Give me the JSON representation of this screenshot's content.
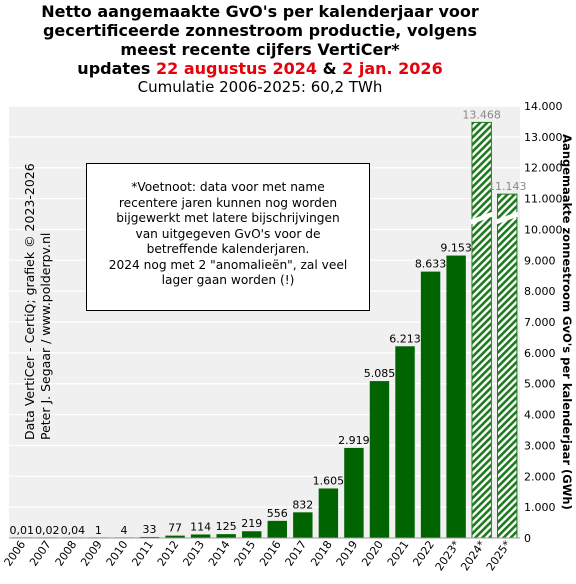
{
  "header": {
    "title_line1": "Netto aangemaakte GvO's per kalenderjaar voor",
    "title_line2": "gecertificeerde zonnestroom productie, volgens",
    "title_line3": "meest recente cijfers VertiCer*",
    "updates_prefix": "updates ",
    "update_date1": "22 augustus 2024",
    "updates_join": " & ",
    "update_date2": "2 jan. 2026",
    "cumulative": "Cumulatie 2006-2025: 60,2 TWh"
  },
  "footnote": {
    "lines": [
      "*Voetnoot: data voor met name",
      "recentere jaren kunnen nog worden",
      "bijgewerkt met latere bijschrijvingen",
      "van uitgegeven GvO's voor de",
      "betreffende kalenderjaren.",
      "2024 nog met 2 \"anomalieën\",  zal veel",
      "lager gaan worden (!)"
    ]
  },
  "credit": {
    "line1": "Data VertiCer - CertiQ; grafiek © 2023-2026",
    "line2": "Peter J. Segaar / www.polderpv.nl"
  },
  "colors": {
    "bar": "#006400",
    "hatch": "#1f7a1f",
    "grid": "#ffffff",
    "plot_bg": "#f0f0f0",
    "red": "#e8000b"
  },
  "chart_data": {
    "type": "bar",
    "ylabel": "Aangemaakte zonnestroom GvO's per kalenderjaar (GWh)",
    "ylim": [
      0,
      14000
    ],
    "yticks": [
      "0",
      "1.000",
      "2.000",
      "3.000",
      "4.000",
      "5.000",
      "6.000",
      "7.000",
      "8.000",
      "9.000",
      "10.000",
      "11.000",
      "12.000",
      "13.000",
      "14.000"
    ],
    "axis_position": "right",
    "grid": true,
    "categories": [
      "2006",
      "2007",
      "2008",
      "2009",
      "2010",
      "2011",
      "2012",
      "2013",
      "2014",
      "2015",
      "2016",
      "2017",
      "2018",
      "2019",
      "2020",
      "2021",
      "2022",
      "2023*",
      "2024*",
      "2025*"
    ],
    "values": [
      0.01,
      0.02,
      0.04,
      1,
      4,
      33,
      77,
      114,
      125,
      219,
      556,
      832,
      1605,
      2919,
      5085,
      6213,
      8633,
      9153,
      13468,
      11143
    ],
    "labels": [
      "0,01",
      "0,02",
      "0,04",
      "1",
      "4",
      "33",
      "77",
      "114",
      "125",
      "219",
      "556",
      "832",
      "1.605",
      "2.919",
      "5.085",
      "6.213",
      "8.633",
      "9.153",
      "13.468",
      "11.143"
    ],
    "provisional": [
      false,
      false,
      false,
      false,
      false,
      false,
      false,
      false,
      false,
      false,
      false,
      false,
      false,
      false,
      false,
      false,
      false,
      false,
      true,
      true
    ]
  }
}
